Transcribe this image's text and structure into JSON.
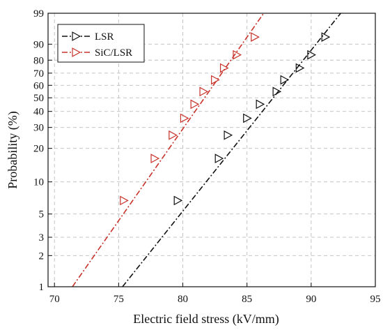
{
  "chart_data": {
    "type": "scatter",
    "title": "",
    "xlabel": "Electric field stress (kV/mm)",
    "ylabel": "Probability (%)",
    "xlim": [
      69.5,
      95
    ],
    "ylim": [
      1,
      99
    ],
    "yscale": "weibull-probability",
    "grid": true,
    "legend_position": "top-left",
    "x_ticks": [
      70,
      75,
      80,
      85,
      90,
      95
    ],
    "y_ticks": [
      1,
      2,
      3,
      5,
      10,
      20,
      30,
      40,
      50,
      60,
      70,
      80,
      90,
      99
    ],
    "series": [
      {
        "name": "LSR",
        "color": "#111111",
        "marker": "triangle-right",
        "line_style": "dash-dot",
        "points": [
          {
            "x": 79.6,
            "y": 6.7
          },
          {
            "x": 82.8,
            "y": 16.3
          },
          {
            "x": 83.5,
            "y": 25.9
          },
          {
            "x": 85.0,
            "y": 35.5
          },
          {
            "x": 86.0,
            "y": 45.1
          },
          {
            "x": 87.3,
            "y": 54.9
          },
          {
            "x": 87.9,
            "y": 64.5
          },
          {
            "x": 89.1,
            "y": 74.1
          },
          {
            "x": 90.0,
            "y": 83.7
          },
          {
            "x": 91.1,
            "y": 93.3
          }
        ],
        "fit_line": [
          {
            "x": 75.3,
            "y": 1
          },
          {
            "x": 92.3,
            "y": 99
          }
        ]
      },
      {
        "name": "SiC/LSR",
        "color": "#c8322a",
        "marker": "triangle-right",
        "line_style": "dash-dot",
        "points": [
          {
            "x": 75.4,
            "y": 6.7
          },
          {
            "x": 77.8,
            "y": 16.3
          },
          {
            "x": 79.2,
            "y": 25.9
          },
          {
            "x": 80.1,
            "y": 35.5
          },
          {
            "x": 80.9,
            "y": 45.1
          },
          {
            "x": 81.6,
            "y": 54.9
          },
          {
            "x": 82.5,
            "y": 64.5
          },
          {
            "x": 83.2,
            "y": 74.1
          },
          {
            "x": 84.2,
            "y": 83.7
          },
          {
            "x": 85.6,
            "y": 93.3
          }
        ],
        "fit_line": [
          {
            "x": 71.4,
            "y": 1
          },
          {
            "x": 86.3,
            "y": 99
          }
        ]
      }
    ]
  }
}
